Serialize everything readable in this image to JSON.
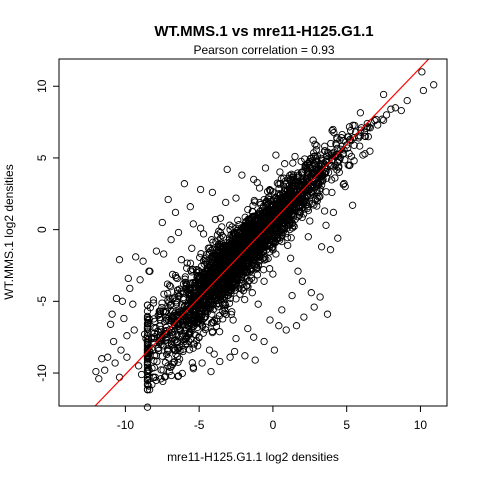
{
  "chart_data": {
    "type": "scatter",
    "title": "WT.MMS.1 vs mre11-H125.G1.1",
    "subtitle": "Pearson correlation =  0.93",
    "xlabel": "mre11-H125.G1.1 log2 densities",
    "ylabel": "WT.MMS.1 log2 densities",
    "xlim": [
      -14.5,
      11.8
    ],
    "ylim": [
      -12.3,
      11.9
    ],
    "x_ticks": [
      -10,
      -5,
      0,
      5,
      10
    ],
    "y_ticks": [
      -10,
      -5,
      0,
      5,
      10
    ],
    "x_tick_labels": [
      "-10",
      "-5",
      "0",
      "5",
      "10"
    ],
    "y_tick_labels": [
      "-10",
      "-5",
      "0",
      "5",
      "10"
    ],
    "grid": false,
    "legend": "none",
    "correlation": 0.93,
    "regression_line": {
      "slope": 1.07,
      "intercept": 0.6,
      "color": "#ff0000"
    },
    "point_color": "#000000",
    "points": [
      [
        10.1,
        11.0
      ],
      [
        10.9,
        10.1
      ],
      [
        10.2,
        9.7
      ],
      [
        9.1,
        9.0
      ],
      [
        8.7,
        8.3
      ],
      [
        8.3,
        8.5
      ],
      [
        8.0,
        8.4
      ],
      [
        7.7,
        8.0
      ],
      [
        7.4,
        7.7
      ],
      [
        7.1,
        7.3
      ],
      [
        6.9,
        7.6
      ],
      [
        6.6,
        7.1
      ],
      [
        6.4,
        7.4
      ],
      [
        6.2,
        6.8
      ],
      [
        6.0,
        7.1
      ],
      [
        5.8,
        6.4
      ],
      [
        5.6,
        6.8
      ],
      [
        5.3,
        6.2
      ],
      [
        5.0,
        5.9
      ],
      [
        4.8,
        6.2
      ],
      [
        4.6,
        5.6
      ],
      [
        4.3,
        5.9
      ],
      [
        4.0,
        5.3
      ],
      [
        5.1,
        4.5
      ],
      [
        5.5,
        4.8
      ],
      [
        6.1,
        5.2
      ],
      [
        4.5,
        4.0
      ],
      [
        3.8,
        4.8
      ],
      [
        3.5,
        5.5
      ],
      [
        3.2,
        4.6
      ],
      [
        5.4,
        1.7
      ],
      [
        4.1,
        1.2
      ],
      [
        3.6,
        0.3
      ],
      [
        4.4,
        -0.6
      ],
      [
        3.9,
        -1.4
      ],
      [
        2.6,
        2.9
      ],
      [
        2.0,
        4.0
      ],
      [
        1.5,
        5.1
      ],
      [
        0.8,
        4.6
      ],
      [
        0.2,
        5.2
      ],
      [
        -0.5,
        4.3
      ],
      [
        -1.3,
        3.5
      ],
      [
        -2.1,
        3.8
      ],
      [
        -3.1,
        4.2
      ],
      [
        -6.0,
        3.2
      ],
      [
        -4.1,
        2.6
      ],
      [
        -4.9,
        2.8
      ],
      [
        -5.6,
        1.6
      ],
      [
        -6.6,
        1.2
      ],
      [
        -7.5,
        0.5
      ],
      [
        -7.1,
        2.1
      ],
      [
        -6.9,
        -0.7
      ],
      [
        -7.9,
        -1.5
      ],
      [
        -6.4,
        -0.2
      ],
      [
        -8.4,
        -2.9
      ],
      [
        -9.3,
        -1.9
      ],
      [
        -10.4,
        -2.1
      ],
      [
        -9.0,
        -3.5
      ],
      [
        -9.8,
        -3.4
      ],
      [
        -10.6,
        -4.8
      ],
      [
        -9.5,
        -5.2
      ],
      [
        -10.1,
        -6.2
      ],
      [
        -9.9,
        -7.4
      ],
      [
        -11.0,
        -6.6
      ],
      [
        -10.8,
        -7.8
      ],
      [
        -10.3,
        -8.4
      ],
      [
        -11.2,
        -8.9
      ],
      [
        -10.7,
        -9.3
      ],
      [
        -11.4,
        -9.8
      ],
      [
        -12.0,
        -9.9
      ],
      [
        -11.8,
        -10.4
      ],
      [
        -10.4,
        -10.3
      ],
      [
        -9.1,
        -9.5
      ],
      [
        -8.4,
        -9.8
      ],
      [
        -8.9,
        -10.1
      ],
      [
        -7.6,
        -10.4
      ],
      [
        -8.2,
        -10.8
      ],
      [
        -7.0,
        -9.9
      ],
      [
        -6.4,
        -10.2
      ],
      [
        -5.4,
        -9.6
      ],
      [
        -4.2,
        -9.9
      ],
      [
        -3.6,
        -9.2
      ],
      [
        -2.6,
        -8.5
      ],
      [
        -1.9,
        -8.8
      ],
      [
        -1.2,
        -9.1
      ],
      [
        -0.6,
        -7.8
      ],
      [
        0.1,
        -8.4
      ],
      [
        0.9,
        -7.0
      ],
      [
        1.6,
        -6.7
      ],
      [
        2.1,
        -6.1
      ],
      [
        2.8,
        -5.4
      ],
      [
        3.2,
        -4.7
      ],
      [
        3.7,
        -5.9
      ],
      [
        -4.1,
        -7.1
      ],
      [
        -5.1,
        -8.1
      ],
      [
        -6.1,
        -8.5
      ],
      [
        -7.2,
        -8.7
      ],
      [
        -8.6,
        -7.6
      ],
      [
        -9.4,
        -7.0
      ],
      [
        -10.9,
        -5.9
      ],
      [
        -10.2,
        -5.0
      ],
      [
        -9.7,
        -4.1
      ],
      [
        -8.8,
        -2.2
      ],
      [
        -7.4,
        -1.7
      ],
      [
        -6.6,
        -3.2
      ],
      [
        -5.2,
        -6.5
      ],
      [
        -4.6,
        -5.0
      ],
      [
        -3.3,
        -3.8
      ],
      [
        -2.7,
        -6.3
      ],
      [
        -2.1,
        -2.5
      ],
      [
        -1.4,
        -4.4
      ],
      [
        -0.8,
        -1.1
      ],
      [
        0.0,
        -3.1
      ],
      [
        0.6,
        -0.2
      ],
      [
        1.2,
        -2.0
      ],
      [
        1.8,
        1.0
      ],
      [
        2.4,
        -0.5
      ],
      [
        3.0,
        2.0
      ],
      [
        3.5,
        1.3
      ],
      [
        2.2,
        3.2
      ],
      [
        1.1,
        2.4
      ],
      [
        0.3,
        1.2
      ],
      [
        -0.5,
        0.9
      ],
      [
        -1.3,
        0.3
      ],
      [
        -2.2,
        -0.2
      ],
      [
        -3.0,
        -1.1
      ],
      [
        -3.7,
        -1.8
      ],
      [
        -4.4,
        -2.9
      ],
      [
        -5.1,
        -3.5
      ],
      [
        -5.8,
        -4.2
      ],
      [
        -6.5,
        -5.1
      ],
      [
        -7.3,
        -5.8
      ],
      [
        -8.0,
        -6.4
      ],
      [
        -8.7,
        -7.3
      ],
      [
        -5.4,
        0.4
      ],
      [
        -4.7,
        -0.3
      ],
      [
        -3.9,
        0.7
      ],
      [
        -3.2,
        1.9
      ],
      [
        -2.5,
        2.2
      ],
      [
        -1.7,
        1.4
      ],
      [
        -0.9,
        2.9
      ],
      [
        -0.2,
        2.1
      ],
      [
        0.5,
        3.2
      ],
      [
        1.4,
        3.8
      ],
      [
        2.7,
        3.9
      ],
      [
        3.3,
        3.1
      ],
      [
        4.2,
        3.6
      ],
      [
        4.9,
        3.0
      ],
      [
        2.0,
        -3.6
      ],
      [
        1.3,
        -4.6
      ],
      [
        0.6,
        -5.6
      ],
      [
        -0.2,
        -6.3
      ],
      [
        -1.0,
        -5.2
      ],
      [
        -1.7,
        -6.9
      ],
      [
        -2.5,
        -7.6
      ],
      [
        -3.4,
        -5.7
      ],
      [
        -4.3,
        -8.4
      ],
      [
        -5.7,
        -7.3
      ],
      [
        -6.7,
        -6.6
      ],
      [
        -7.7,
        -7.9
      ],
      [
        -8.1,
        -4.9
      ],
      [
        -7.0,
        -3.9
      ],
      [
        -6.2,
        -2.1
      ],
      [
        -5.5,
        -1.3
      ],
      [
        -4.9,
        0.1
      ],
      [
        -4.0,
        -3.2
      ],
      [
        -3.1,
        -4.6
      ],
      [
        -2.3,
        -4.1
      ],
      [
        -1.5,
        -2.9
      ],
      [
        -0.6,
        -3.6
      ],
      [
        0.2,
        -1.7
      ],
      [
        1.0,
        -1.1
      ],
      [
        1.7,
        -2.9
      ],
      [
        2.5,
        0.6
      ],
      [
        3.3,
        -1.2
      ],
      [
        4.0,
        2.6
      ],
      [
        -2.9,
        -8.9
      ],
      [
        -1.3,
        -7.5
      ],
      [
        0.4,
        -6.7
      ],
      [
        2.6,
        -4.4
      ],
      [
        -9.9,
        -8.9
      ],
      [
        -11.6,
        -9.0
      ],
      [
        -6.8,
        -9.4
      ],
      [
        -4.8,
        -9.3
      ]
    ]
  }
}
